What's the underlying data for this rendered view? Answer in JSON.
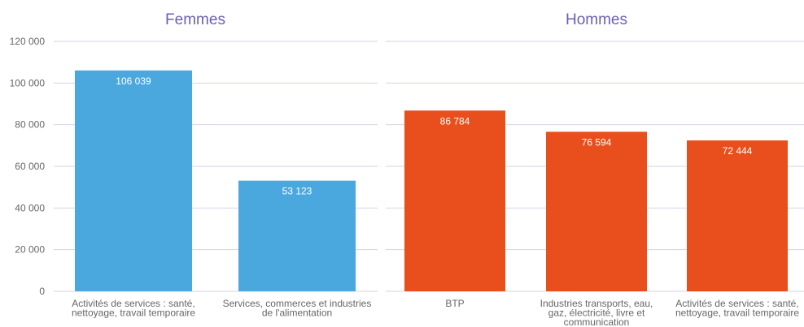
{
  "chart_data": [
    {
      "type": "bar",
      "title": "Femmes",
      "categories": [
        [
          "Activités de services : santé,",
          "nettoyage, travail temporaire"
        ],
        [
          "Services, commerces et industries",
          "de l'alimentation"
        ]
      ],
      "values": [
        106039,
        53123
      ],
      "value_labels": [
        "106 039",
        "53 123"
      ],
      "color": "#4aa8df",
      "ylim": [
        0,
        120000
      ],
      "yticks": [
        0,
        20000,
        40000,
        60000,
        80000,
        100000,
        120000
      ],
      "ytick_labels": [
        "0",
        "20 000",
        "40 000",
        "60 000",
        "80 000",
        "100 000",
        "120 000"
      ],
      "grid": true
    },
    {
      "type": "bar",
      "title": "Hommes",
      "categories": [
        [
          "BTP"
        ],
        [
          "Industries transports, eau,",
          "gaz, électricité, livre et",
          "communication"
        ],
        [
          "Activités de services : santé,",
          "nettoyage, travail temporaire"
        ]
      ],
      "values": [
        86784,
        76594,
        72444
      ],
      "value_labels": [
        "86 784",
        "76 594",
        "72 444"
      ],
      "color": "#e94f1c",
      "ylim": [
        0,
        120000
      ],
      "grid": true
    }
  ],
  "colors": {
    "title": "#6b5fb2",
    "grid": "#d6d3e6",
    "axis_text": "#666666"
  }
}
